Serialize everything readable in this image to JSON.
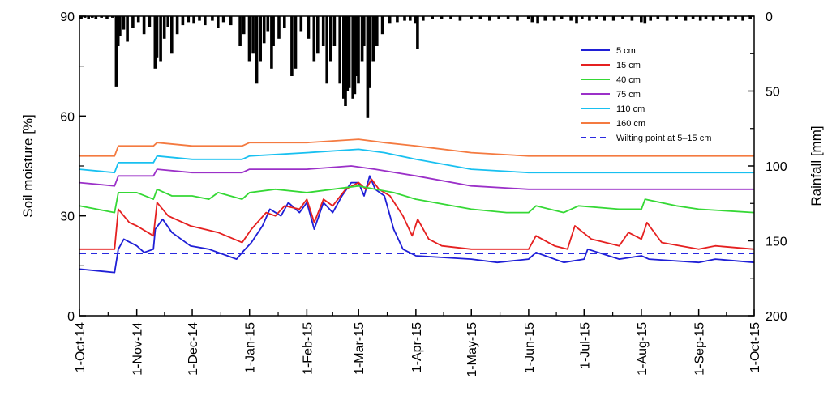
{
  "chart_data": {
    "type": "line",
    "title": "",
    "ylabel": "Soil moisture [%]",
    "y2label": "Rainfall [mm]",
    "ylim": [
      0,
      90
    ],
    "y2lim": [
      200,
      0
    ],
    "yticks": [
      "0",
      "30",
      "60",
      "90"
    ],
    "y2ticks": [
      "0",
      "50",
      "100",
      "150",
      "200"
    ],
    "x_tick_labels": [
      "1-Oct-14",
      "1-Nov-14",
      "1-Dec-14",
      "1-Jan-15",
      "1-Feb-15",
      "1-Mar-15",
      "1-Apr-15",
      "1-May-15",
      "1-Jun-15",
      "1-Jul-15",
      "1-Aug-15",
      "1-Sep-15",
      "1-Oct-15"
    ],
    "x_tick_dates": [
      "2014-10-01",
      "2014-11-01",
      "2014-12-01",
      "2015-01-01",
      "2015-02-01",
      "2015-03-01",
      "2015-04-01",
      "2015-05-01",
      "2015-06-01",
      "2015-07-01",
      "2015-08-01",
      "2015-09-01",
      "2015-10-01"
    ],
    "grid": false,
    "legend_position": "top-right",
    "colors": {
      "5 cm": "#1f1fd6",
      "15 cm": "#e52020",
      "40 cm": "#35d835",
      "75 cm": "#9b30c8",
      "110 cm": "#18c0f0",
      "160 cm": "#f47a40",
      "wilting": "#2a2ae0",
      "rain": "#000000"
    },
    "series": [
      {
        "name": "5 cm",
        "points": [
          [
            "2014-10-01",
            14
          ],
          [
            "2014-10-20",
            13
          ],
          [
            "2014-10-22",
            20
          ],
          [
            "2014-10-25",
            23
          ],
          [
            "2014-11-01",
            21
          ],
          [
            "2014-11-05",
            19
          ],
          [
            "2014-11-10",
            20
          ],
          [
            "2014-11-11",
            26
          ],
          [
            "2014-11-15",
            29
          ],
          [
            "2014-11-20",
            25
          ],
          [
            "2014-11-30",
            21
          ],
          [
            "2014-12-10",
            20
          ],
          [
            "2014-12-20",
            18
          ],
          [
            "2014-12-25",
            17
          ],
          [
            "2014-12-28",
            19
          ],
          [
            "2015-01-02",
            22
          ],
          [
            "2015-01-08",
            27
          ],
          [
            "2015-01-12",
            32
          ],
          [
            "2015-01-18",
            30
          ],
          [
            "2015-01-22",
            34
          ],
          [
            "2015-01-28",
            31
          ],
          [
            "2015-02-01",
            34
          ],
          [
            "2015-02-05",
            26
          ],
          [
            "2015-02-10",
            34
          ],
          [
            "2015-02-15",
            31
          ],
          [
            "2015-02-20",
            36
          ],
          [
            "2015-02-25",
            40
          ],
          [
            "2015-03-01",
            40
          ],
          [
            "2015-03-04",
            36
          ],
          [
            "2015-03-07",
            42
          ],
          [
            "2015-03-10",
            38
          ],
          [
            "2015-03-15",
            36
          ],
          [
            "2015-03-20",
            26
          ],
          [
            "2015-03-25",
            20
          ],
          [
            "2015-04-01",
            18
          ],
          [
            "2015-05-01",
            17
          ],
          [
            "2015-05-15",
            16
          ],
          [
            "2015-06-01",
            17
          ],
          [
            "2015-06-05",
            19
          ],
          [
            "2015-06-20",
            16
          ],
          [
            "2015-07-01",
            17
          ],
          [
            "2015-07-03",
            20
          ],
          [
            "2015-07-20",
            17
          ],
          [
            "2015-08-01",
            18
          ],
          [
            "2015-08-05",
            17
          ],
          [
            "2015-09-01",
            16
          ],
          [
            "2015-09-10",
            17
          ],
          [
            "2015-10-01",
            16
          ]
        ]
      },
      {
        "name": "15 cm",
        "points": [
          [
            "2014-10-01",
            20
          ],
          [
            "2014-10-20",
            20
          ],
          [
            "2014-10-22",
            32
          ],
          [
            "2014-10-28",
            28
          ],
          [
            "2014-11-01",
            27
          ],
          [
            "2014-11-10",
            24
          ],
          [
            "2014-11-12",
            34
          ],
          [
            "2014-11-18",
            30
          ],
          [
            "2014-11-30",
            27
          ],
          [
            "2014-12-15",
            25
          ],
          [
            "2014-12-28",
            22
          ],
          [
            "2015-01-02",
            26
          ],
          [
            "2015-01-10",
            31
          ],
          [
            "2015-01-15",
            30
          ],
          [
            "2015-01-20",
            33
          ],
          [
            "2015-01-28",
            32
          ],
          [
            "2015-02-01",
            35
          ],
          [
            "2015-02-05",
            28
          ],
          [
            "2015-02-10",
            35
          ],
          [
            "2015-02-15",
            33
          ],
          [
            "2015-02-22",
            38
          ],
          [
            "2015-03-01",
            40
          ],
          [
            "2015-03-05",
            38
          ],
          [
            "2015-03-08",
            41
          ],
          [
            "2015-03-12",
            38
          ],
          [
            "2015-03-18",
            36
          ],
          [
            "2015-03-25",
            30
          ],
          [
            "2015-03-30",
            24
          ],
          [
            "2015-04-02",
            29
          ],
          [
            "2015-04-08",
            23
          ],
          [
            "2015-04-15",
            21
          ],
          [
            "2015-05-01",
            20
          ],
          [
            "2015-05-20",
            20
          ],
          [
            "2015-06-01",
            20
          ],
          [
            "2015-06-05",
            24
          ],
          [
            "2015-06-15",
            21
          ],
          [
            "2015-06-22",
            20
          ],
          [
            "2015-06-26",
            27
          ],
          [
            "2015-07-05",
            23
          ],
          [
            "2015-07-20",
            21
          ],
          [
            "2015-07-25",
            25
          ],
          [
            "2015-08-01",
            23
          ],
          [
            "2015-08-04",
            28
          ],
          [
            "2015-08-12",
            22
          ],
          [
            "2015-09-01",
            20
          ],
          [
            "2015-09-10",
            21
          ],
          [
            "2015-10-01",
            20
          ]
        ]
      },
      {
        "name": "40 cm",
        "points": [
          [
            "2014-10-01",
            33
          ],
          [
            "2014-10-20",
            31
          ],
          [
            "2014-10-22",
            37
          ],
          [
            "2014-11-01",
            37
          ],
          [
            "2014-11-10",
            35
          ],
          [
            "2014-11-12",
            38
          ],
          [
            "2014-11-20",
            36
          ],
          [
            "2014-12-01",
            36
          ],
          [
            "2014-12-10",
            35
          ],
          [
            "2014-12-15",
            37
          ],
          [
            "2014-12-28",
            35
          ],
          [
            "2015-01-01",
            37
          ],
          [
            "2015-01-15",
            38
          ],
          [
            "2015-02-01",
            37
          ],
          [
            "2015-02-15",
            38
          ],
          [
            "2015-03-01",
            39
          ],
          [
            "2015-03-10",
            38
          ],
          [
            "2015-03-20",
            37
          ],
          [
            "2015-04-01",
            35
          ],
          [
            "2015-05-01",
            32
          ],
          [
            "2015-05-20",
            31
          ],
          [
            "2015-06-01",
            31
          ],
          [
            "2015-06-05",
            33
          ],
          [
            "2015-06-20",
            31
          ],
          [
            "2015-06-28",
            33
          ],
          [
            "2015-07-20",
            32
          ],
          [
            "2015-08-01",
            32
          ],
          [
            "2015-08-03",
            35
          ],
          [
            "2015-08-20",
            33
          ],
          [
            "2015-09-01",
            32
          ],
          [
            "2015-10-01",
            31
          ]
        ]
      },
      {
        "name": "75 cm",
        "points": [
          [
            "2014-10-01",
            40
          ],
          [
            "2014-10-20",
            39
          ],
          [
            "2014-10-22",
            42
          ],
          [
            "2014-11-10",
            42
          ],
          [
            "2014-11-12",
            44
          ],
          [
            "2014-12-01",
            43
          ],
          [
            "2014-12-28",
            43
          ],
          [
            "2015-01-01",
            44
          ],
          [
            "2015-01-20",
            44
          ],
          [
            "2015-02-01",
            44
          ],
          [
            "2015-02-25",
            45
          ],
          [
            "2015-03-10",
            44
          ],
          [
            "2015-04-01",
            42
          ],
          [
            "2015-05-01",
            39
          ],
          [
            "2015-06-01",
            38
          ],
          [
            "2015-07-01",
            38
          ],
          [
            "2015-08-01",
            38
          ],
          [
            "2015-09-01",
            38
          ],
          [
            "2015-10-01",
            38
          ]
        ]
      },
      {
        "name": "110 cm",
        "points": [
          [
            "2014-10-01",
            44
          ],
          [
            "2014-10-20",
            43
          ],
          [
            "2014-10-22",
            46
          ],
          [
            "2014-11-10",
            46
          ],
          [
            "2014-11-12",
            48
          ],
          [
            "2014-12-01",
            47
          ],
          [
            "2014-12-28",
            47
          ],
          [
            "2015-01-01",
            48
          ],
          [
            "2015-02-01",
            49
          ],
          [
            "2015-03-01",
            50
          ],
          [
            "2015-03-15",
            49
          ],
          [
            "2015-04-01",
            47
          ],
          [
            "2015-05-01",
            44
          ],
          [
            "2015-06-01",
            43
          ],
          [
            "2015-07-01",
            43
          ],
          [
            "2015-08-01",
            43
          ],
          [
            "2015-09-01",
            43
          ],
          [
            "2015-10-01",
            43
          ]
        ]
      },
      {
        "name": "160 cm",
        "points": [
          [
            "2014-10-01",
            48
          ],
          [
            "2014-10-20",
            48
          ],
          [
            "2014-10-22",
            51
          ],
          [
            "2014-11-10",
            51
          ],
          [
            "2014-11-12",
            52
          ],
          [
            "2014-12-01",
            51
          ],
          [
            "2014-12-28",
            51
          ],
          [
            "2015-01-01",
            52
          ],
          [
            "2015-02-01",
            52
          ],
          [
            "2015-03-01",
            53
          ],
          [
            "2015-03-15",
            52
          ],
          [
            "2015-04-01",
            51
          ],
          [
            "2015-05-01",
            49
          ],
          [
            "2015-06-01",
            48
          ],
          [
            "2015-07-01",
            48
          ],
          [
            "2015-08-01",
            48
          ],
          [
            "2015-09-01",
            48
          ],
          [
            "2015-10-01",
            48
          ]
        ]
      },
      {
        "name": "Wilting point at 5–15 cm",
        "points": [
          [
            "2014-10-01",
            18.7
          ],
          [
            "2015-10-01",
            18.7
          ]
        ]
      }
    ],
    "rainfall_mm": [
      [
        "2014-10-02",
        2
      ],
      [
        "2014-10-04",
        1
      ],
      [
        "2014-10-06",
        2
      ],
      [
        "2014-10-08",
        1
      ],
      [
        "2014-10-10",
        2
      ],
      [
        "2014-10-13",
        1
      ],
      [
        "2014-10-16",
        2
      ],
      [
        "2014-10-19",
        1
      ],
      [
        "2014-10-21",
        47
      ],
      [
        "2014-10-22",
        20
      ],
      [
        "2014-10-23",
        13
      ],
      [
        "2014-10-25",
        9
      ],
      [
        "2014-10-27",
        17
      ],
      [
        "2014-10-30",
        8
      ],
      [
        "2014-11-02",
        4
      ],
      [
        "2014-11-05",
        12
      ],
      [
        "2014-11-08",
        7
      ],
      [
        "2014-11-11",
        35
      ],
      [
        "2014-11-12",
        28
      ],
      [
        "2014-11-14",
        30
      ],
      [
        "2014-11-16",
        15
      ],
      [
        "2014-11-18",
        7
      ],
      [
        "2014-11-20",
        25
      ],
      [
        "2014-11-23",
        12
      ],
      [
        "2014-11-26",
        6
      ],
      [
        "2014-11-29",
        4
      ],
      [
        "2014-12-02",
        5
      ],
      [
        "2014-12-05",
        3
      ],
      [
        "2014-12-08",
        6
      ],
      [
        "2014-12-12",
        3
      ],
      [
        "2014-12-15",
        8
      ],
      [
        "2014-12-18",
        4
      ],
      [
        "2014-12-22",
        6
      ],
      [
        "2014-12-27",
        20
      ],
      [
        "2014-12-29",
        12
      ],
      [
        "2015-01-01",
        30
      ],
      [
        "2015-01-03",
        25
      ],
      [
        "2015-01-05",
        45
      ],
      [
        "2015-01-07",
        30
      ],
      [
        "2015-01-09",
        18
      ],
      [
        "2015-01-11",
        10
      ],
      [
        "2015-01-13",
        35
      ],
      [
        "2015-01-14",
        20
      ],
      [
        "2015-01-17",
        15
      ],
      [
        "2015-01-20",
        8
      ],
      [
        "2015-01-24",
        40
      ],
      [
        "2015-01-26",
        35
      ],
      [
        "2015-01-29",
        10
      ],
      [
        "2015-02-02",
        15
      ],
      [
        "2015-02-05",
        30
      ],
      [
        "2015-02-07",
        25
      ],
      [
        "2015-02-10",
        20
      ],
      [
        "2015-02-12",
        45
      ],
      [
        "2015-02-14",
        30
      ],
      [
        "2015-02-16",
        20
      ],
      [
        "2015-02-19",
        45
      ],
      [
        "2015-02-21",
        55
      ],
      [
        "2015-02-22",
        60
      ],
      [
        "2015-02-23",
        50
      ],
      [
        "2015-02-24",
        48
      ],
      [
        "2015-02-26",
        55
      ],
      [
        "2015-02-27",
        52
      ],
      [
        "2015-02-28",
        40
      ],
      [
        "2015-03-01",
        45
      ],
      [
        "2015-03-03",
        30
      ],
      [
        "2015-03-04",
        20
      ],
      [
        "2015-03-06",
        68
      ],
      [
        "2015-03-07",
        48
      ],
      [
        "2015-03-09",
        30
      ],
      [
        "2015-03-11",
        20
      ],
      [
        "2015-03-14",
        12
      ],
      [
        "2015-03-18",
        5
      ],
      [
        "2015-03-22",
        4
      ],
      [
        "2015-03-26",
        3
      ],
      [
        "2015-03-29",
        3
      ],
      [
        "2015-04-01",
        5
      ],
      [
        "2015-04-02",
        22
      ],
      [
        "2015-04-05",
        3
      ],
      [
        "2015-04-10",
        2
      ],
      [
        "2015-04-15",
        2
      ],
      [
        "2015-04-20",
        2
      ],
      [
        "2015-04-25",
        3
      ],
      [
        "2015-05-01",
        2
      ],
      [
        "2015-05-06",
        2
      ],
      [
        "2015-05-11",
        3
      ],
      [
        "2015-05-16",
        2
      ],
      [
        "2015-05-21",
        2
      ],
      [
        "2015-05-26",
        3
      ],
      [
        "2015-06-01",
        2
      ],
      [
        "2015-06-03",
        4
      ],
      [
        "2015-06-06",
        5
      ],
      [
        "2015-06-10",
        3
      ],
      [
        "2015-06-15",
        3
      ],
      [
        "2015-06-19",
        2
      ],
      [
        "2015-06-24",
        3
      ],
      [
        "2015-06-27",
        5
      ],
      [
        "2015-06-30",
        2
      ],
      [
        "2015-07-04",
        3
      ],
      [
        "2015-07-08",
        2
      ],
      [
        "2015-07-12",
        3
      ],
      [
        "2015-07-17",
        3
      ],
      [
        "2015-07-22",
        2
      ],
      [
        "2015-07-27",
        3
      ],
      [
        "2015-08-01",
        4
      ],
      [
        "2015-08-03",
        5
      ],
      [
        "2015-08-06",
        3
      ],
      [
        "2015-08-10",
        2
      ],
      [
        "2015-08-15",
        3
      ],
      [
        "2015-08-20",
        2
      ],
      [
        "2015-08-25",
        3
      ],
      [
        "2015-08-29",
        2
      ],
      [
        "2015-09-02",
        3
      ],
      [
        "2015-09-05",
        2
      ],
      [
        "2015-09-09",
        3
      ],
      [
        "2015-09-13",
        2
      ],
      [
        "2015-09-17",
        3
      ],
      [
        "2015-09-21",
        2
      ],
      [
        "2015-09-25",
        3
      ],
      [
        "2015-09-29",
        2
      ]
    ]
  }
}
